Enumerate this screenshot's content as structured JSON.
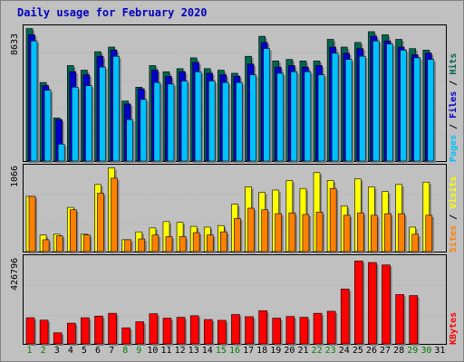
{
  "title": "Daily usage for February 2020",
  "colors": {
    "hits": "#006650",
    "files": "#0000cc",
    "pages": "#00c0ff",
    "visits": "#ffff00",
    "sites": "#ff8000",
    "kbytes": "#ff0000",
    "weekend_day": "#007f00",
    "weekday": "#000000"
  },
  "side_labels": {
    "top": [
      "Pages",
      " / ",
      "Files",
      " / ",
      "Hits"
    ],
    "middle": [
      "Sites",
      " / ",
      "Visits"
    ],
    "bottom": [
      "KBytes"
    ]
  },
  "chart_data": [
    {
      "type": "bar",
      "name": "hits-files-pages",
      "ymax_label": "8633",
      "ylim": [
        0,
        8633
      ],
      "categories": [
        "1",
        "2",
        "3",
        "4",
        "5",
        "6",
        "7",
        "8",
        "9",
        "10",
        "11",
        "12",
        "13",
        "14",
        "15",
        "16",
        "17",
        "18",
        "19",
        "20",
        "21",
        "22",
        "23",
        "24",
        "25",
        "26",
        "27",
        "28",
        "29",
        "30",
        "31"
      ],
      "series": [
        {
          "name": "Hits",
          "values": [
            8600,
            5100,
            2800,
            6200,
            5900,
            7100,
            7400,
            3900,
            4800,
            6200,
            5800,
            6000,
            6700,
            6000,
            5900,
            5700,
            6800,
            8100,
            6500,
            6600,
            6500,
            6500,
            7900,
            7400,
            7700,
            8400,
            8200,
            7900,
            7300,
            7200,
            null
          ]
        },
        {
          "name": "Files",
          "values": [
            8200,
            4900,
            2700,
            5800,
            5600,
            6800,
            7200,
            3700,
            4700,
            5900,
            5500,
            5800,
            6400,
            5700,
            5600,
            5500,
            6300,
            7700,
            6100,
            6200,
            6100,
            6200,
            7400,
            7000,
            7300,
            8100,
            7800,
            7400,
            6900,
            7000,
            null
          ]
        },
        {
          "name": "Pages",
          "values": [
            7800,
            4600,
            1100,
            4800,
            4900,
            6100,
            6800,
            2700,
            4000,
            5100,
            5000,
            5200,
            5800,
            5200,
            5100,
            5100,
            5600,
            7300,
            5700,
            5800,
            5800,
            5600,
            7000,
            6600,
            6800,
            7800,
            7600,
            7200,
            6700,
            6600,
            null
          ]
        }
      ]
    },
    {
      "type": "bar",
      "name": "visits-sites",
      "ymax_label": "1066",
      "ylim": [
        0,
        1066
      ],
      "categories": [
        "1",
        "2",
        "3",
        "4",
        "5",
        "6",
        "7",
        "8",
        "9",
        "10",
        "11",
        "12",
        "13",
        "14",
        "15",
        "16",
        "17",
        "18",
        "19",
        "20",
        "21",
        "22",
        "23",
        "24",
        "25",
        "26",
        "27",
        "28",
        "29",
        "30",
        "31"
      ],
      "series": [
        {
          "name": "Visits",
          "values": [
            700,
            210,
            220,
            560,
            220,
            850,
            1060,
            150,
            250,
            300,
            380,
            370,
            320,
            310,
            330,
            600,
            820,
            750,
            780,
            900,
            800,
            1000,
            900,
            580,
            920,
            820,
            760,
            850,
            310,
            880,
            null
          ]
        },
        {
          "name": "Sites",
          "values": [
            700,
            150,
            200,
            530,
            210,
            740,
            930,
            150,
            160,
            210,
            190,
            190,
            240,
            210,
            250,
            420,
            550,
            530,
            480,
            490,
            470,
            500,
            800,
            460,
            490,
            460,
            480,
            480,
            220,
            460,
            null
          ]
        }
      ]
    },
    {
      "type": "bar",
      "name": "kbytes",
      "ymax_label": "426796",
      "ylim": [
        0,
        426796
      ],
      "categories": [
        "1",
        "2",
        "3",
        "4",
        "5",
        "6",
        "7",
        "8",
        "9",
        "10",
        "11",
        "12",
        "13",
        "14",
        "15",
        "16",
        "17",
        "18",
        "19",
        "20",
        "21",
        "22",
        "23",
        "24",
        "25",
        "26",
        "27",
        "28",
        "29",
        "30",
        "31"
      ],
      "series": [
        {
          "name": "KBytes",
          "values": [
            130000,
            118000,
            55000,
            103000,
            130000,
            138000,
            152000,
            80000,
            110000,
            150000,
            128000,
            132000,
            140000,
            121000,
            117000,
            146000,
            135000,
            165000,
            128000,
            136000,
            132000,
            152000,
            162000,
            272000,
            412000,
            404000,
            392000,
            245000,
            240000,
            null,
            null
          ]
        }
      ]
    }
  ],
  "day_labels": [
    "1",
    "2",
    "3",
    "4",
    "5",
    "6",
    "7",
    "8",
    "9",
    "10",
    "11",
    "12",
    "13",
    "14",
    "15",
    "16",
    "17",
    "18",
    "19",
    "20",
    "21",
    "22",
    "23",
    "24",
    "25",
    "26",
    "27",
    "28",
    "29",
    "30",
    "31"
  ],
  "weekend_days": [
    "1",
    "2",
    "8",
    "9",
    "15",
    "16",
    "22",
    "23",
    "29",
    "30"
  ]
}
